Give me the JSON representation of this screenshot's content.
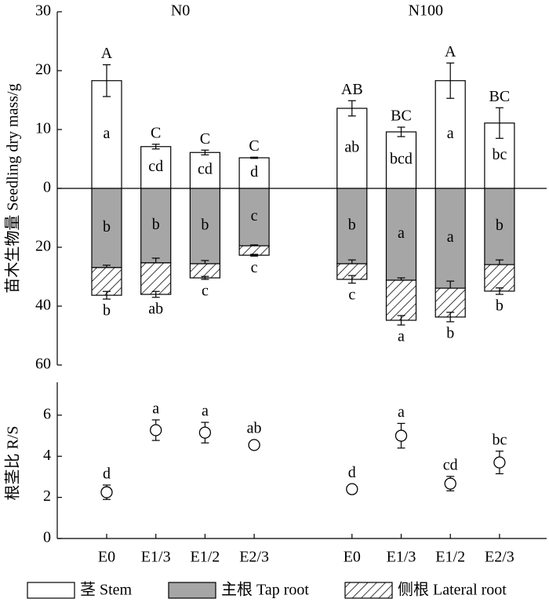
{
  "chart_data": [
    {
      "type": "bar",
      "ylabel": "苗木生物量 Seedling dry mass/g",
      "groups": [
        "N0",
        "N100"
      ],
      "categories": [
        "E0",
        "E1/3",
        "E1/2",
        "E2/3",
        "E0",
        "E1/3",
        "E1/2",
        "E2/3"
      ],
      "ylim": [
        0,
        30
      ],
      "yticks": [
        0,
        10,
        20,
        30
      ],
      "y2lim": [
        0,
        60
      ],
      "y2ticks": [
        20,
        40,
        60
      ],
      "top_letters": [
        "A",
        "C",
        "C",
        "C",
        "AB",
        "BC",
        "A",
        "BC"
      ],
      "series": [
        {
          "name": "茎 Stem",
          "color": "#ffffff",
          "axis": "y",
          "values": [
            18.3,
            7.1,
            6.1,
            5.2,
            13.6,
            9.6,
            18.3,
            11.1
          ],
          "errors": [
            2.7,
            0.4,
            0.4,
            0.1,
            1.3,
            0.8,
            3.0,
            2.6
          ],
          "letters": [
            "a",
            "cd",
            "cd",
            "d",
            "ab",
            "bcd",
            "a",
            "bc"
          ]
        },
        {
          "name": "主根 Tap root",
          "color": "#a6a6a6",
          "axis": "y2",
          "values": [
            26.9,
            25.3,
            25.6,
            19.5,
            25.6,
            31.2,
            33.9,
            25.9
          ],
          "errors": [
            0.8,
            1.6,
            1.1,
            0.3,
            1.3,
            0.8,
            2.4,
            1.6
          ],
          "letters": [
            "b",
            "b",
            "b",
            "c",
            "b",
            "a",
            "a",
            "b"
          ]
        },
        {
          "name": "侧根 Lateral root",
          "color": "#ffffff",
          "pattern": "hatch",
          "axis": "y2",
          "values": [
            9.4,
            10.7,
            4.8,
            3.2,
            5.3,
            13.6,
            9.8,
            9.0
          ],
          "errors": [
            1.3,
            1.0,
            0.5,
            0.3,
            1.3,
            1.6,
            1.6,
            1.1
          ],
          "letters": [
            "b",
            "ab",
            "c",
            "c",
            "c",
            "a",
            "b",
            "b"
          ]
        }
      ]
    },
    {
      "type": "scatter",
      "ylabel": "根茎比 R/S",
      "categories": [
        "E0",
        "E1/3",
        "E1/2",
        "E2/3",
        "E0",
        "E1/3",
        "E1/2",
        "E2/3"
      ],
      "ylim": [
        0,
        7.6
      ],
      "yticks": [
        0,
        2,
        4,
        6
      ],
      "values": [
        2.25,
        5.27,
        5.15,
        4.55,
        2.4,
        5.0,
        2.67,
        3.7
      ],
      "errors": [
        0.35,
        0.5,
        0.5,
        0.1,
        0.1,
        0.6,
        0.35,
        0.55
      ],
      "letters": [
        "d",
        "a",
        "a",
        "ab",
        "d",
        "a",
        "cd",
        "bc"
      ]
    }
  ]
}
